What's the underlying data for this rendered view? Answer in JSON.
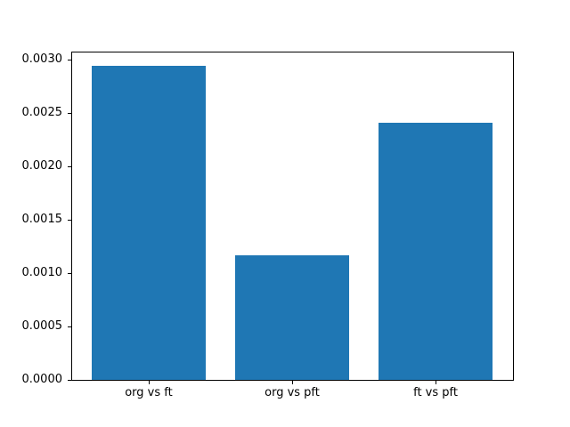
{
  "figure": {
    "background": "#ffffff",
    "title": ""
  },
  "chart_data": {
    "type": "bar",
    "title": "",
    "xlabel": "",
    "ylabel": "",
    "categories": [
      "org vs ft",
      "org vs pft",
      "ft vs pft"
    ],
    "values": [
      0.00294,
      0.00117,
      0.00241
    ],
    "bar_color": "#1f77b4",
    "axis_color": "#000000",
    "xlim": [
      -0.54,
      2.54
    ],
    "ylim": [
      0,
      0.003075
    ],
    "bar_width": 0.8,
    "yticks": [
      {
        "value": 0.0,
        "label": "0.0000"
      },
      {
        "value": 0.0005,
        "label": "0.0005"
      },
      {
        "value": 0.001,
        "label": "0.0010"
      },
      {
        "value": 0.0015,
        "label": "0.0015"
      },
      {
        "value": 0.002,
        "label": "0.0020"
      },
      {
        "value": 0.0025,
        "label": "0.0025"
      },
      {
        "value": 0.003,
        "label": "0.0030"
      }
    ],
    "grid": false,
    "legend": null
  }
}
